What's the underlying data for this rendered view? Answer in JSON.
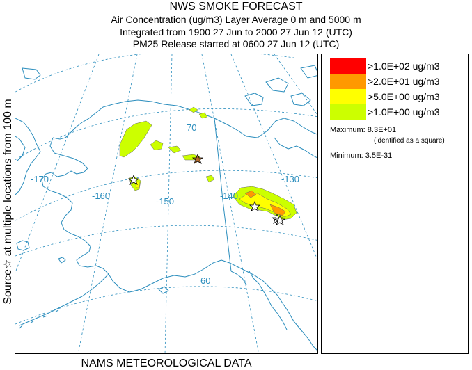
{
  "header": {
    "title": "NWS SMOKE FORECAST",
    "line2": "Air Concentration (ug/m3) Layer Average     0 m and  5000 m",
    "line3": "Integrated from 1900 27 Jun to 2000 27 Jun 12 (UTC)",
    "line4": "PM25 Release started at 0600 27 Jun 12 (UTC)"
  },
  "side_label": "Source☆ at multiple locations  from   100 m",
  "footer": "NAMS METEOROLOGICAL DATA",
  "map": {
    "longitude_labels": [
      "-170",
      "-160",
      "-150",
      "-140",
      "-130"
    ],
    "latitude_labels": [
      "70",
      "60"
    ],
    "colors": {
      "coast": "#2a8dbd",
      "grid": "#2a8dbd",
      "contour_low": "#ccff00",
      "contour_mid": "#ffff00",
      "contour_high": "#ff9900"
    }
  },
  "legend": {
    "entries": [
      {
        "color": "#ff0000",
        "label": ">1.0E+02 ug/m3"
      },
      {
        "color": "#ff9900",
        "label": ">2.0E+01 ug/m3"
      },
      {
        "color": "#ffff00",
        "label": ">5.0E+00 ug/m3"
      },
      {
        "color": "#ccff00",
        "label": ">1.0E+00 ug/m3"
      }
    ],
    "maximum": "Maximum: 8.3E+01",
    "maximum_note": "(identified as a square)",
    "minimum": "Minimum: 3.5E-31"
  }
}
